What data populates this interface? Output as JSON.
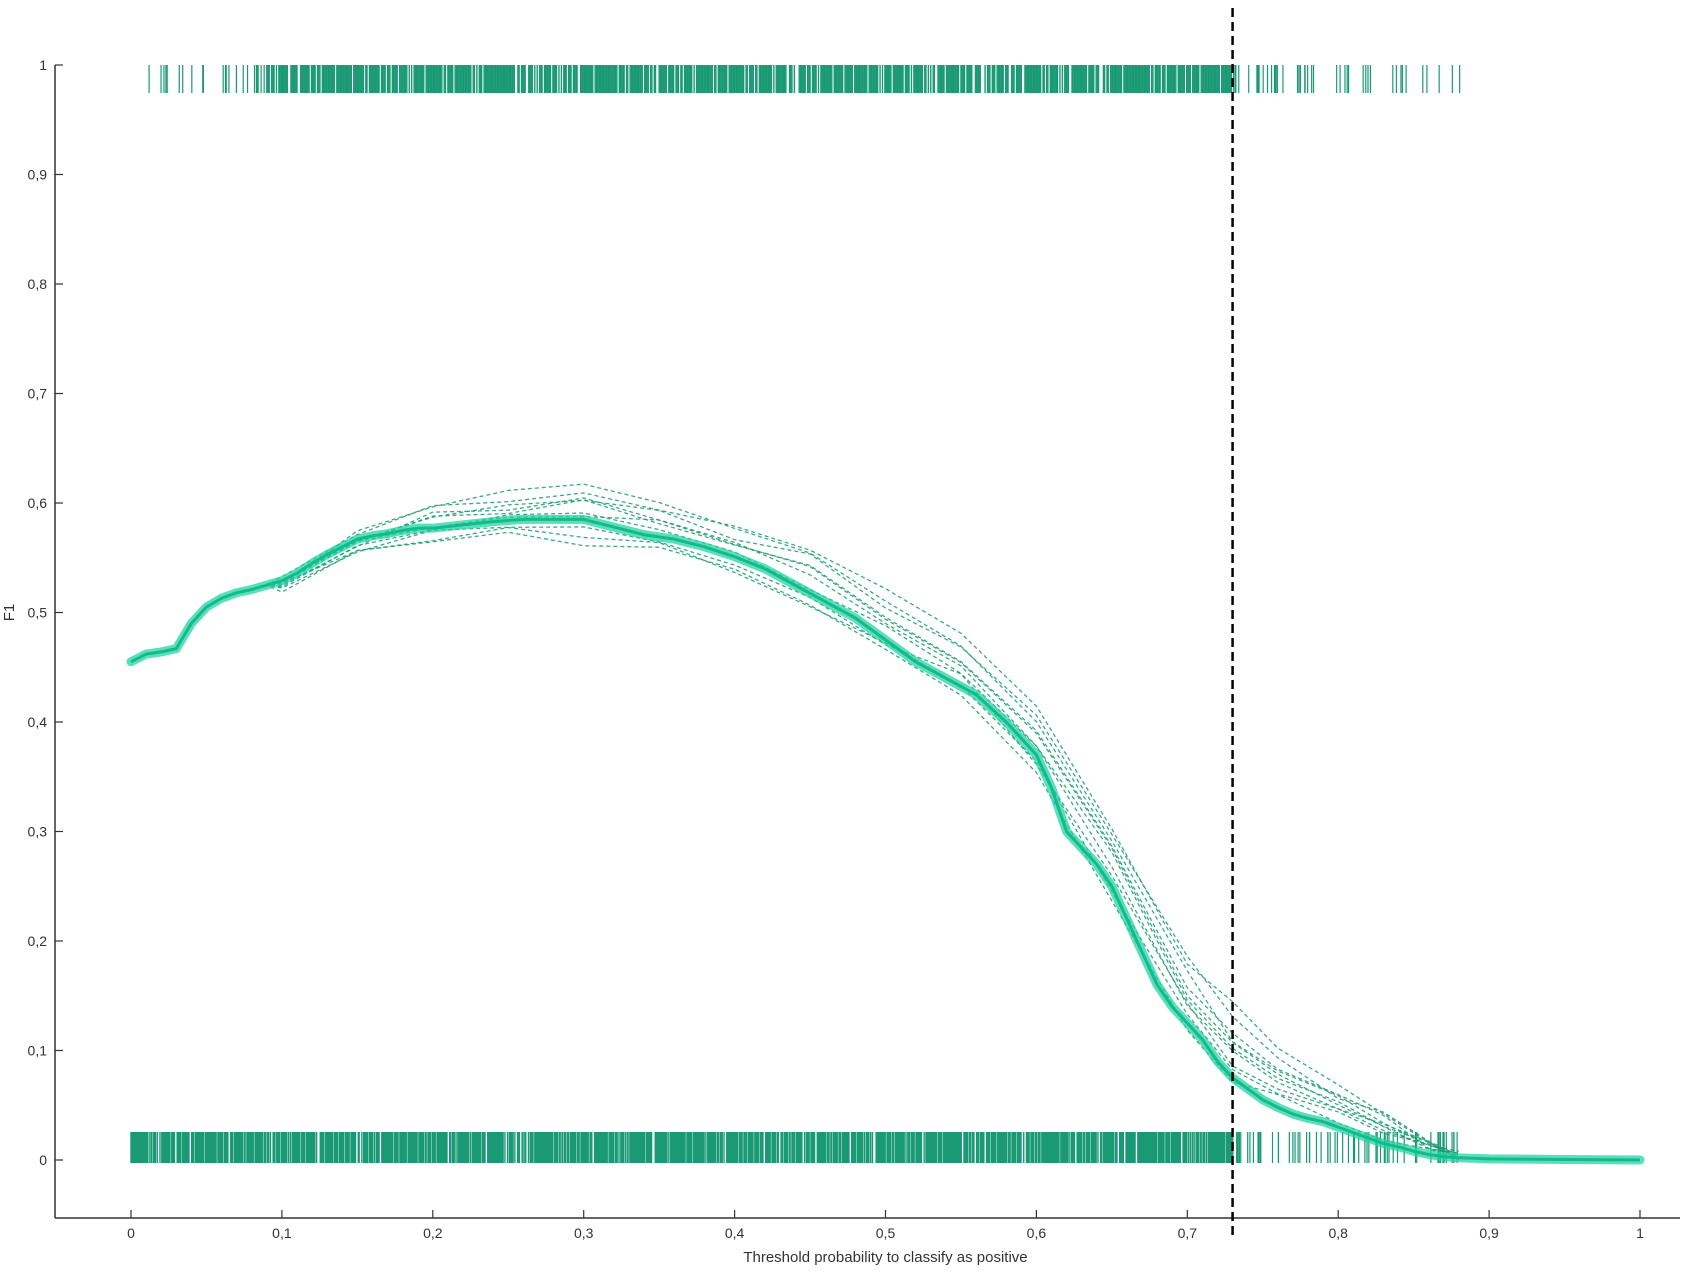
{
  "chart_data": {
    "type": "line",
    "title": "",
    "xlabel": "Threshold probability to classify as positive",
    "ylabel": "F1",
    "xlim": [
      0,
      1
    ],
    "ylim": [
      0,
      1
    ],
    "xticks": [
      0,
      0.1,
      0.2,
      0.3,
      0.4,
      0.5,
      0.6,
      0.7,
      0.8,
      0.9,
      1
    ],
    "xtick_labels": [
      "0",
      "0,1",
      "0,2",
      "0,3",
      "0,4",
      "0,5",
      "0,6",
      "0,7",
      "0,8",
      "0,9",
      "1"
    ],
    "yticks": [
      0,
      0.1,
      0.2,
      0.3,
      0.4,
      0.5,
      0.6,
      0.7,
      0.8,
      0.9,
      1
    ],
    "ytick_labels": [
      "0",
      "0,1",
      "0,2",
      "0,3",
      "0,4",
      "0,5",
      "0,6",
      "0,7",
      "0,8",
      "0,9",
      "1"
    ],
    "grid": false,
    "legend": "none",
    "vline": {
      "x": 0.73,
      "style": "dashed",
      "color": "#000000"
    },
    "colors": {
      "mean_line": "#1fd6a4",
      "mean_line_core": "#17b88a",
      "fold_lines": "#1a9a72",
      "rug": "#1a9a74",
      "axis": "#333333"
    },
    "series": [
      {
        "role": "mean",
        "style": "solid-thick",
        "x": [
          0,
          0.01,
          0.02,
          0.03,
          0.04,
          0.05,
          0.06,
          0.07,
          0.08,
          0.09,
          0.1,
          0.11,
          0.12,
          0.13,
          0.14,
          0.15,
          0.16,
          0.17,
          0.18,
          0.19,
          0.2,
          0.22,
          0.24,
          0.26,
          0.28,
          0.3,
          0.32,
          0.34,
          0.36,
          0.38,
          0.4,
          0.42,
          0.44,
          0.46,
          0.48,
          0.5,
          0.52,
          0.54,
          0.56,
          0.58,
          0.6,
          0.61,
          0.62,
          0.63,
          0.64,
          0.65,
          0.66,
          0.67,
          0.68,
          0.69,
          0.7,
          0.71,
          0.72,
          0.73,
          0.74,
          0.75,
          0.76,
          0.77,
          0.78,
          0.79,
          0.8,
          0.81,
          0.82,
          0.83,
          0.84,
          0.85,
          0.86,
          0.87,
          0.88,
          0.9,
          0.92,
          0.95,
          1.0
        ],
        "y": [
          0.455,
          0.462,
          0.464,
          0.467,
          0.49,
          0.505,
          0.513,
          0.518,
          0.521,
          0.525,
          0.529,
          0.536,
          0.545,
          0.553,
          0.56,
          0.567,
          0.57,
          0.572,
          0.575,
          0.577,
          0.577,
          0.58,
          0.583,
          0.585,
          0.585,
          0.585,
          0.578,
          0.571,
          0.567,
          0.56,
          0.551,
          0.54,
          0.525,
          0.51,
          0.495,
          0.475,
          0.455,
          0.44,
          0.425,
          0.4,
          0.37,
          0.34,
          0.3,
          0.285,
          0.27,
          0.25,
          0.22,
          0.19,
          0.16,
          0.14,
          0.125,
          0.11,
          0.09,
          0.075,
          0.065,
          0.055,
          0.048,
          0.042,
          0.038,
          0.035,
          0.03,
          0.025,
          0.02,
          0.015,
          0.012,
          0.008,
          0.005,
          0.003,
          0.002,
          0.001,
          0.0008,
          0.0004,
          0.0
        ]
      }
    ],
    "fold_curves": {
      "count": 10,
      "style": "dashed-thin",
      "description_note": null,
      "x": [
        0.1,
        0.15,
        0.2,
        0.25,
        0.3,
        0.35,
        0.4,
        0.45,
        0.5,
        0.55,
        0.6,
        0.65,
        0.7,
        0.73,
        0.76,
        0.8,
        0.83,
        0.86,
        0.88
      ],
      "y": [
        [
          0.527,
          0.565,
          0.59,
          0.6,
          0.605,
          0.59,
          0.57,
          0.55,
          0.5,
          0.47,
          0.41,
          0.3,
          0.19,
          0.13,
          0.09,
          0.06,
          0.04,
          0.015,
          0.005
        ],
        [
          0.525,
          0.56,
          0.582,
          0.59,
          0.588,
          0.58,
          0.56,
          0.53,
          0.49,
          0.45,
          0.38,
          0.28,
          0.15,
          0.1,
          0.07,
          0.05,
          0.03,
          0.012,
          0.004
        ],
        [
          0.523,
          0.555,
          0.57,
          0.575,
          0.57,
          0.56,
          0.54,
          0.51,
          0.47,
          0.43,
          0.36,
          0.25,
          0.13,
          0.08,
          0.06,
          0.04,
          0.025,
          0.01,
          0.003
        ],
        [
          0.528,
          0.57,
          0.6,
          0.61,
          0.62,
          0.6,
          0.58,
          0.55,
          0.51,
          0.47,
          0.4,
          0.29,
          0.17,
          0.11,
          0.08,
          0.055,
          0.035,
          0.014,
          0.004
        ],
        [
          0.524,
          0.558,
          0.575,
          0.58,
          0.578,
          0.566,
          0.548,
          0.515,
          0.475,
          0.44,
          0.365,
          0.26,
          0.14,
          0.09,
          0.065,
          0.045,
          0.028,
          0.011,
          0.003
        ],
        [
          0.526,
          0.562,
          0.585,
          0.595,
          0.598,
          0.585,
          0.565,
          0.54,
          0.5,
          0.46,
          0.39,
          0.29,
          0.16,
          0.12,
          0.085,
          0.058,
          0.038,
          0.015,
          0.005
        ],
        [
          0.522,
          0.552,
          0.565,
          0.57,
          0.565,
          0.555,
          0.535,
          0.505,
          0.465,
          0.425,
          0.355,
          0.24,
          0.12,
          0.075,
          0.055,
          0.038,
          0.022,
          0.009,
          0.002
        ],
        [
          0.529,
          0.568,
          0.595,
          0.605,
          0.61,
          0.595,
          0.575,
          0.555,
          0.52,
          0.48,
          0.41,
          0.3,
          0.18,
          0.14,
          0.1,
          0.065,
          0.042,
          0.016,
          0.005
        ],
        [
          0.525,
          0.56,
          0.58,
          0.585,
          0.59,
          0.575,
          0.555,
          0.525,
          0.485,
          0.445,
          0.375,
          0.27,
          0.145,
          0.095,
          0.07,
          0.048,
          0.03,
          0.012,
          0.004
        ],
        [
          0.527,
          0.563,
          0.588,
          0.598,
          0.6,
          0.588,
          0.566,
          0.538,
          0.498,
          0.458,
          0.385,
          0.28,
          0.155,
          0.105,
          0.075,
          0.052,
          0.033,
          0.013,
          0.004
        ]
      ]
    },
    "rug": {
      "positive": {
        "y": 1,
        "x_range": [
          0.01,
          0.89
        ],
        "dense_range": [
          0.09,
          0.73
        ]
      },
      "negative": {
        "y": 0,
        "x_range": [
          0.0,
          0.88
        ],
        "dense_range": [
          0.0,
          0.73
        ]
      }
    }
  }
}
